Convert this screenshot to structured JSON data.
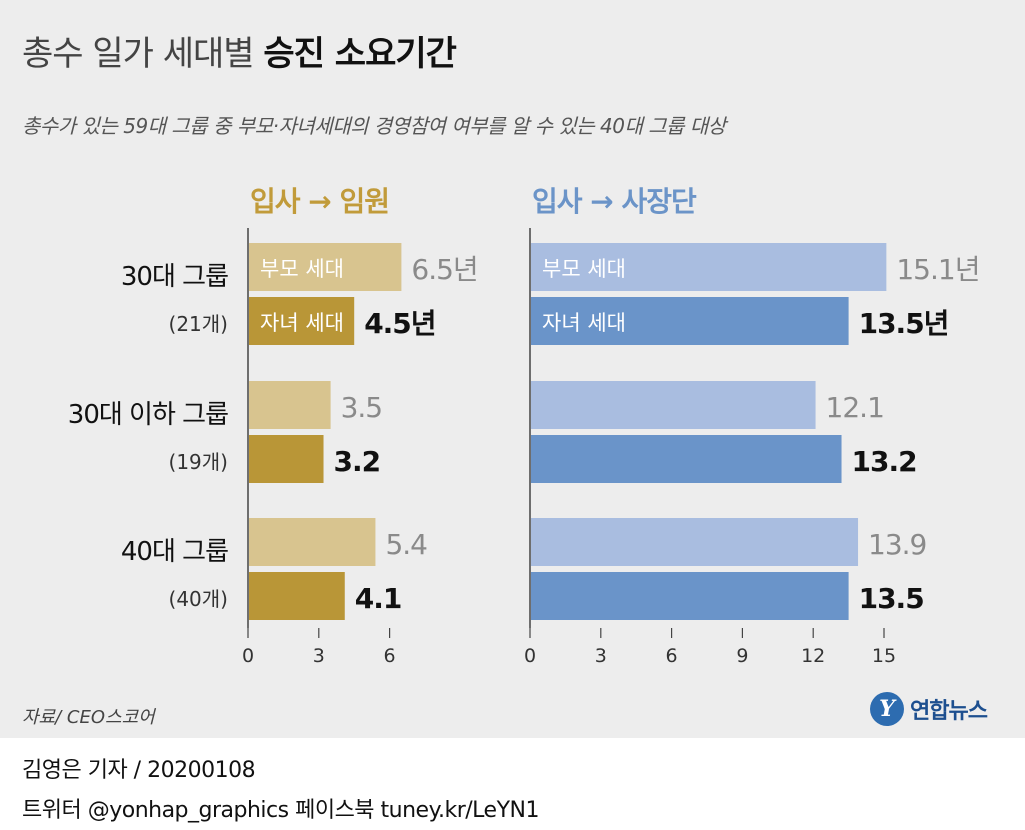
{
  "header": {
    "title_light": "총수 일가 세대별",
    "title_bold": "승진 소요기간",
    "subtitle": "총수가 있는 59대 그룹 중 부모·자녀세대의 경영참여 여부를 알 수 있는 40대 그룹 대상"
  },
  "groups": [
    {
      "name": "30대 그룹",
      "count": "(21개)"
    },
    {
      "name": "30대 이하 그룹",
      "count": "(19개)"
    },
    {
      "name": "40대 그룹",
      "count": "(40개)"
    }
  ],
  "chart_data": [
    {
      "type": "bar",
      "title": "입사 → 임원",
      "categories": [
        "30대 그룹",
        "30대 이하 그룹",
        "40대 그룹"
      ],
      "series": [
        {
          "name": "부모 세대",
          "values": [
            6.5,
            3.5,
            5.4
          ],
          "labels": [
            "6.5년",
            "3.5",
            "5.4"
          ],
          "color": "#d8c48f",
          "value_color": "#8a8a8a"
        },
        {
          "name": "자녀 세대",
          "values": [
            4.5,
            3.2,
            4.1
          ],
          "labels": [
            "4.5년",
            "3.2",
            "4.1"
          ],
          "color": "#b99637",
          "value_color": "#111111"
        }
      ],
      "xlim": [
        0,
        6.5
      ],
      "ticks": [
        0,
        3,
        6
      ],
      "title_color": "#c19b3a"
    },
    {
      "type": "bar",
      "title": "입사 → 사장단",
      "categories": [
        "30대 그룹",
        "30대 이하 그룹",
        "40대 그룹"
      ],
      "series": [
        {
          "name": "부모 세대",
          "values": [
            15.1,
            12.1,
            13.9
          ],
          "labels": [
            "15.1년",
            "12.1",
            "13.9"
          ],
          "color": "#a9bde0",
          "value_color": "#8a8a8a"
        },
        {
          "name": "자녀 세대",
          "values": [
            13.5,
            13.2,
            13.5
          ],
          "labels": [
            "13.5년",
            "13.2",
            "13.5"
          ],
          "color": "#6a94c9",
          "value_color": "#111111"
        }
      ],
      "xlim": [
        0,
        15.1
      ],
      "ticks": [
        0,
        3,
        6,
        9,
        12,
        15
      ],
      "title_color": "#6b94c8"
    }
  ],
  "footer": {
    "source": "자료/ CEO스코어",
    "logo_mark": "Y",
    "logo_text": "연합뉴스",
    "byline": "김영은 기자 / 20200108",
    "social": "트위터 @yonhap_graphics  페이스북 tuney.kr/LeYN1"
  }
}
